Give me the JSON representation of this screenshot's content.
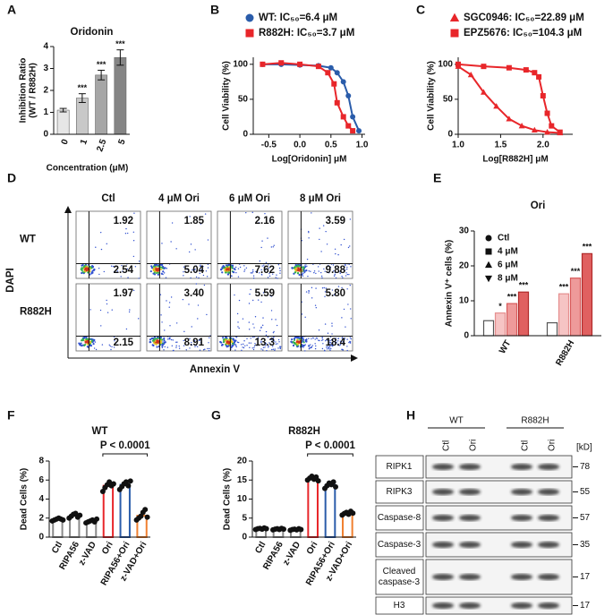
{
  "chart_data": [
    {
      "panel": "A",
      "type": "bar",
      "title": "Oridonin",
      "ylabel": [
        "Inhibition Ratio",
        "(WT / R882H)"
      ],
      "xlabel": "Concentration (μM)",
      "categories": [
        "0",
        "1",
        "2.5",
        "5"
      ],
      "values": [
        1.1,
        1.65,
        2.7,
        3.5
      ],
      "errors": [
        0.08,
        0.2,
        0.22,
        0.35
      ],
      "annotations": [
        null,
        "***",
        "***",
        "***"
      ],
      "colors": [
        "#e6e6e6",
        "#c8c8c8",
        "#a6a6a6",
        "#858585"
      ],
      "ylim": [
        0,
        4
      ],
      "yticks": [
        0,
        1,
        2,
        3,
        4
      ]
    },
    {
      "panel": "B",
      "type": "dose_response",
      "ylabel": "Cell Viability (%)",
      "xlabel": "Log[Oridonin] μM",
      "xlim": [
        -0.75,
        1.05
      ],
      "xticks": [
        -0.5,
        {
          "value": 0,
          "label": "0.0"
        },
        0.5,
        {
          "value": 1,
          "label": "1.0"
        }
      ],
      "ylim": [
        0,
        110
      ],
      "yticks": [
        0,
        50,
        100
      ],
      "series": [
        {
          "name": "WT: IC₅₀=6.4 μM",
          "color": "#2a5caa",
          "marker": "circle",
          "x": [
            -0.6,
            -0.3,
            0,
            0.3,
            0.5,
            0.6,
            0.7,
            0.78,
            0.85,
            0.95
          ],
          "values": [
            100,
            100,
            99,
            98,
            95,
            88,
            75,
            55,
            25,
            5
          ]
        },
        {
          "name": "R882H: IC₅₀=3.7 μM",
          "color": "#e8262a",
          "marker": "square",
          "x": [
            -0.6,
            -0.3,
            0,
            0.3,
            0.45,
            0.55,
            0.6,
            0.7,
            0.78,
            0.85
          ],
          "values": [
            100,
            102,
            100,
            97,
            88,
            72,
            45,
            25,
            12,
            5
          ]
        }
      ]
    },
    {
      "panel": "C",
      "type": "dose_response",
      "ylabel": "Cell Viability (%)",
      "xlabel": "Log[R882H]  μM",
      "xlim": [
        1.0,
        2.35
      ],
      "xticks": [
        {
          "value": 1,
          "label": "1.0"
        },
        1.5,
        {
          "value": 2,
          "label": "2.0"
        }
      ],
      "ylim": [
        0,
        110
      ],
      "yticks": [
        0,
        50,
        100
      ],
      "series": [
        {
          "name": "SGC0946: IC₅₀=22.89 μM",
          "color": "#e8262a",
          "marker": "triangle",
          "x": [
            1.0,
            1.15,
            1.3,
            1.45,
            1.6,
            1.75,
            1.9,
            2.05,
            2.2
          ],
          "values": [
            97,
            85,
            60,
            40,
            22,
            12,
            6,
            3,
            2
          ]
        },
        {
          "name": "EPZ5676: IC₅₀=104.3 μM",
          "color": "#e8262a",
          "marker": "square",
          "x": [
            1.0,
            1.3,
            1.6,
            1.8,
            1.9,
            1.95,
            2.0,
            2.05,
            2.1,
            2.2
          ],
          "values": [
            100,
            97,
            95,
            92,
            88,
            82,
            55,
            30,
            12,
            3
          ]
        }
      ]
    },
    {
      "panel": "D",
      "type": "flow_grid",
      "columns": [
        "Ctl",
        "4 μM Ori",
        "6 μM Ori",
        "8 μM Ori"
      ],
      "rows": [
        "WT",
        "R882H"
      ],
      "xlabel": "Annexin V",
      "ylabel": "DAPI",
      "upper": {
        "values": [
          [
            1.92,
            1.85,
            2.16,
            3.59
          ],
          [
            1.97,
            3.4,
            5.59,
            5.8
          ]
        ],
        "value_labels": [
          [
            "1.92",
            "1.85",
            "2.16",
            "3.59"
          ],
          [
            "1.97",
            "3.40",
            "5.59",
            "5.80"
          ]
        ]
      },
      "lower": {
        "values": [
          [
            2.54,
            5.04,
            7.62,
            9.88
          ],
          [
            2.15,
            8.91,
            13.3,
            18.4
          ]
        ],
        "value_labels": [
          [
            "2.54",
            "5.04",
            "7.62",
            "9.88"
          ],
          [
            "2.15",
            "8.91",
            "13.3",
            "18.4"
          ]
        ]
      }
    },
    {
      "panel": "E",
      "type": "grouped_bar",
      "title": "Ori",
      "ylabel": "Annexin V⁺ cells (%)",
      "categories": [
        "WT",
        "R882H"
      ],
      "ylim": [
        0,
        30
      ],
      "yticks": [
        0,
        10,
        20,
        30
      ],
      "series": [
        {
          "name": "Ctl",
          "color": "#ffffff",
          "edgecolor": "#555555",
          "marker": "circle",
          "values": [
            4.3,
            3.7
          ],
          "annotations": [
            null,
            null
          ]
        },
        {
          "name": "4 μM",
          "color": "#f6c4c4",
          "edgecolor": "#e58f8f",
          "marker": "square",
          "values": [
            6.5,
            12.0
          ],
          "annotations": [
            "*",
            "***"
          ]
        },
        {
          "name": "6 μM",
          "color": "#ee9a9a",
          "edgecolor": "#d85a5a",
          "marker": "triangle",
          "values": [
            9.2,
            16.5
          ],
          "annotations": [
            "***",
            "***"
          ]
        },
        {
          "name": "8 μM",
          "color": "#e06060",
          "edgecolor": "#b02a2a",
          "marker": "triangle-down",
          "values": [
            12.5,
            23.5
          ],
          "annotations": [
            "***",
            "***"
          ]
        }
      ]
    },
    {
      "panel": "F",
      "type": "bar_dots",
      "title": "WT",
      "ylabel": "Dead Cells (%)",
      "annotation": "P < 0.0001",
      "categories": [
        "Ctl",
        "RIPA56",
        "z-VAD",
        "Ori",
        "RIPA56+Ori",
        "z-VAD+Ori"
      ],
      "values": [
        1.85,
        2.25,
        1.7,
        5.4,
        5.5,
        2.25
      ],
      "colors": [
        "#8a8a8a",
        "#8a8a8a",
        "#8a8a8a",
        "#e8262a",
        "#2a5caa",
        "#f08030"
      ],
      "points": [
        [
          1.7,
          1.8,
          1.9,
          2.0,
          1.9,
          1.8
        ],
        [
          2.0,
          2.2,
          2.4,
          2.5,
          2.1,
          2.3
        ],
        [
          1.5,
          1.6,
          1.7,
          1.8,
          1.6,
          1.9
        ],
        [
          4.8,
          5.2,
          5.5,
          5.8,
          5.4,
          5.6
        ],
        [
          5.0,
          5.3,
          5.6,
          5.8,
          5.4,
          5.9
        ],
        [
          1.8,
          2.0,
          2.2,
          2.6,
          2.9,
          2.1
        ]
      ],
      "ylim": [
        0,
        8
      ],
      "yticks": [
        0,
        2,
        4,
        6,
        8
      ]
    },
    {
      "panel": "G",
      "type": "bar_dots",
      "title": "R882H",
      "ylabel": "Dead Cells (%)",
      "annotation": "P < 0.0001",
      "categories": [
        "Ctl",
        "RIPA56",
        "z-VAD",
        "Ori",
        "RIPA56+Ori",
        "z-VAD+Ori"
      ],
      "values": [
        2.2,
        2.1,
        2.0,
        15.4,
        13.7,
        6.3
      ],
      "colors": [
        "#8a8a8a",
        "#8a8a8a",
        "#8a8a8a",
        "#e8262a",
        "#2a5caa",
        "#f08030"
      ],
      "points": [
        [
          2.0,
          2.2,
          2.3,
          2.1,
          2.4,
          2.2
        ],
        [
          1.9,
          2.1,
          2.2,
          2.0,
          2.3,
          2.1
        ],
        [
          1.8,
          2.0,
          2.1,
          1.9,
          2.2,
          2.0
        ],
        [
          15.0,
          15.5,
          16.0,
          15.2,
          15.8,
          14.8
        ],
        [
          12.8,
          13.5,
          14.2,
          13.8,
          14.5,
          13.2
        ],
        [
          5.8,
          6.2,
          6.5,
          6.0,
          6.8,
          6.3
        ]
      ],
      "ylim": [
        0,
        20
      ],
      "yticks": [
        0,
        5,
        10,
        15,
        20
      ]
    },
    {
      "panel": "H",
      "type": "western_blot",
      "groups": [
        "WT",
        "R882H"
      ],
      "lanes": [
        "Ctl",
        "Ori",
        "Ctl",
        "Ori"
      ],
      "unit": "[kD]",
      "rows": [
        {
          "label": [
            "RIPK1"
          ],
          "kd": 78
        },
        {
          "label": [
            "RIPK3"
          ],
          "kd": 55
        },
        {
          "label": [
            "Caspase-8"
          ],
          "kd": 57
        },
        {
          "label": [
            "Caspase-3"
          ],
          "kd": 35
        },
        {
          "label": [
            "Cleaved",
            "caspase-3"
          ],
          "kd": 17
        },
        {
          "label": [
            "H3"
          ],
          "kd": 17
        }
      ]
    }
  ]
}
